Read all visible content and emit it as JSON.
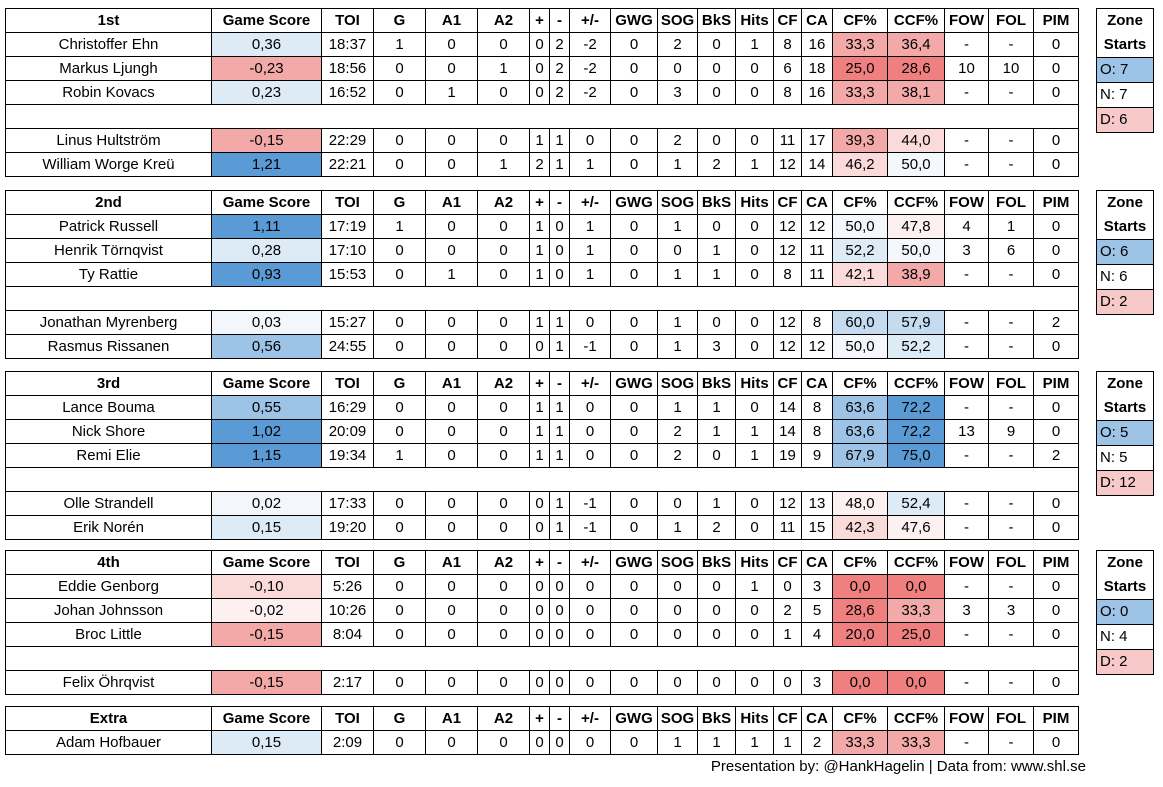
{
  "columns": [
    "Game Score",
    "TOI",
    "G",
    "A1",
    "A2",
    "+",
    "-",
    "+/-",
    "GWG",
    "SOG",
    "BkS",
    "Hits",
    "CF",
    "CA",
    "CF%",
    "CCF%",
    "FOW",
    "FOL",
    "PIM"
  ],
  "blocks": [
    {
      "name": "1st",
      "fwd": [
        {
          "player": "Christoffer Ehn",
          "gs": "0,36",
          "toi": "18:37",
          "g": "1",
          "a1": "0",
          "a2": "0",
          "plus": "0",
          "minus": "2",
          "pm": "-2",
          "gwg": "0",
          "sog": "2",
          "bks": "0",
          "hits": "1",
          "cf": "8",
          "ca": "16",
          "cfp": "33,3",
          "ccfp": "36,4",
          "fow": "-",
          "fol": "-",
          "pim": "0"
        },
        {
          "player": "Markus Ljungh",
          "gs": "-0,23",
          "toi": "18:56",
          "g": "0",
          "a1": "0",
          "a2": "1",
          "plus": "0",
          "minus": "2",
          "pm": "-2",
          "gwg": "0",
          "sog": "0",
          "bks": "0",
          "hits": "0",
          "cf": "6",
          "ca": "18",
          "cfp": "25,0",
          "ccfp": "28,6",
          "fow": "10",
          "fol": "10",
          "pim": "0"
        },
        {
          "player": "Robin Kovacs",
          "gs": "0,23",
          "toi": "16:52",
          "g": "0",
          "a1": "1",
          "a2": "0",
          "plus": "0",
          "minus": "2",
          "pm": "-2",
          "gwg": "0",
          "sog": "3",
          "bks": "0",
          "hits": "0",
          "cf": "8",
          "ca": "16",
          "cfp": "33,3",
          "ccfp": "38,1",
          "fow": "-",
          "fol": "-",
          "pim": "0"
        }
      ],
      "def": [
        {
          "player": "Linus Hultström",
          "gs": "-0,15",
          "toi": "22:29",
          "g": "0",
          "a1": "0",
          "a2": "0",
          "plus": "1",
          "minus": "1",
          "pm": "0",
          "gwg": "0",
          "sog": "2",
          "bks": "0",
          "hits": "0",
          "cf": "11",
          "ca": "17",
          "cfp": "39,3",
          "ccfp": "44,0",
          "fow": "-",
          "fol": "-",
          "pim": "0"
        },
        {
          "player": "William Worge Kreü",
          "gs": "1,21",
          "toi": "22:21",
          "g": "0",
          "a1": "0",
          "a2": "1",
          "plus": "2",
          "minus": "1",
          "pm": "1",
          "gwg": "0",
          "sog": "1",
          "bks": "2",
          "hits": "1",
          "cf": "12",
          "ca": "14",
          "cfp": "46,2",
          "ccfp": "50,0",
          "fow": "-",
          "fol": "-",
          "pim": "0"
        }
      ],
      "zone": {
        "title1": "Zone",
        "title2": "Starts",
        "o": "O: 7",
        "n": "N: 7",
        "d": "D: 6"
      }
    },
    {
      "name": "2nd",
      "fwd": [
        {
          "player": "Patrick Russell",
          "gs": "1,11",
          "toi": "17:19",
          "g": "1",
          "a1": "0",
          "a2": "0",
          "plus": "1",
          "minus": "0",
          "pm": "1",
          "gwg": "0",
          "sog": "1",
          "bks": "0",
          "hits": "0",
          "cf": "12",
          "ca": "12",
          "cfp": "50,0",
          "ccfp": "47,8",
          "fow": "4",
          "fol": "1",
          "pim": "0"
        },
        {
          "player": "Henrik Törnqvist",
          "gs": "0,28",
          "toi": "17:10",
          "g": "0",
          "a1": "0",
          "a2": "0",
          "plus": "1",
          "minus": "0",
          "pm": "1",
          "gwg": "0",
          "sog": "0",
          "bks": "1",
          "hits": "0",
          "cf": "12",
          "ca": "11",
          "cfp": "52,2",
          "ccfp": "50,0",
          "fow": "3",
          "fol": "6",
          "pim": "0"
        },
        {
          "player": "Ty Rattie",
          "gs": "0,93",
          "toi": "15:53",
          "g": "0",
          "a1": "1",
          "a2": "0",
          "plus": "1",
          "minus": "0",
          "pm": "1",
          "gwg": "0",
          "sog": "1",
          "bks": "1",
          "hits": "0",
          "cf": "8",
          "ca": "11",
          "cfp": "42,1",
          "ccfp": "38,9",
          "fow": "-",
          "fol": "-",
          "pim": "0"
        }
      ],
      "def": [
        {
          "player": "Jonathan Myrenberg",
          "gs": "0,03",
          "toi": "15:27",
          "g": "0",
          "a1": "0",
          "a2": "0",
          "plus": "1",
          "minus": "1",
          "pm": "0",
          "gwg": "0",
          "sog": "1",
          "bks": "0",
          "hits": "0",
          "cf": "12",
          "ca": "8",
          "cfp": "60,0",
          "ccfp": "57,9",
          "fow": "-",
          "fol": "-",
          "pim": "2"
        },
        {
          "player": "Rasmus Rissanen",
          "gs": "0,56",
          "toi": "24:55",
          "g": "0",
          "a1": "0",
          "a2": "0",
          "plus": "0",
          "minus": "1",
          "pm": "-1",
          "gwg": "0",
          "sog": "1",
          "bks": "3",
          "hits": "0",
          "cf": "12",
          "ca": "12",
          "cfp": "50,0",
          "ccfp": "52,2",
          "fow": "-",
          "fol": "-",
          "pim": "0"
        }
      ],
      "zone": {
        "title1": "Zone",
        "title2": "Starts",
        "o": "O: 6",
        "n": "N: 6",
        "d": "D: 2"
      }
    },
    {
      "name": "3rd",
      "fwd": [
        {
          "player": "Lance Bouma",
          "gs": "0,55",
          "toi": "16:29",
          "g": "0",
          "a1": "0",
          "a2": "0",
          "plus": "1",
          "minus": "1",
          "pm": "0",
          "gwg": "0",
          "sog": "1",
          "bks": "1",
          "hits": "0",
          "cf": "14",
          "ca": "8",
          "cfp": "63,6",
          "ccfp": "72,2",
          "fow": "-",
          "fol": "-",
          "pim": "0"
        },
        {
          "player": "Nick Shore",
          "gs": "1,02",
          "toi": "20:09",
          "g": "0",
          "a1": "0",
          "a2": "0",
          "plus": "1",
          "minus": "1",
          "pm": "0",
          "gwg": "0",
          "sog": "2",
          "bks": "1",
          "hits": "1",
          "cf": "14",
          "ca": "8",
          "cfp": "63,6",
          "ccfp": "72,2",
          "fow": "13",
          "fol": "9",
          "pim": "0"
        },
        {
          "player": "Remi Elie",
          "gs": "1,15",
          "toi": "19:34",
          "g": "1",
          "a1": "0",
          "a2": "0",
          "plus": "1",
          "minus": "1",
          "pm": "0",
          "gwg": "0",
          "sog": "2",
          "bks": "0",
          "hits": "1",
          "cf": "19",
          "ca": "9",
          "cfp": "67,9",
          "ccfp": "75,0",
          "fow": "-",
          "fol": "-",
          "pim": "2"
        }
      ],
      "def": [
        {
          "player": "Olle Strandell",
          "gs": "0,02",
          "toi": "17:33",
          "g": "0",
          "a1": "0",
          "a2": "0",
          "plus": "0",
          "minus": "1",
          "pm": "-1",
          "gwg": "0",
          "sog": "0",
          "bks": "1",
          "hits": "0",
          "cf": "12",
          "ca": "13",
          "cfp": "48,0",
          "ccfp": "52,4",
          "fow": "-",
          "fol": "-",
          "pim": "0"
        },
        {
          "player": "Erik Norén",
          "gs": "0,15",
          "toi": "19:20",
          "g": "0",
          "a1": "0",
          "a2": "0",
          "plus": "0",
          "minus": "1",
          "pm": "-1",
          "gwg": "0",
          "sog": "1",
          "bks": "2",
          "hits": "0",
          "cf": "11",
          "ca": "15",
          "cfp": "42,3",
          "ccfp": "47,6",
          "fow": "-",
          "fol": "-",
          "pim": "0"
        }
      ],
      "zone": {
        "title1": "Zone",
        "title2": "Starts",
        "o": "O: 5",
        "n": "N: 5",
        "d": "D: 12"
      }
    },
    {
      "name": "4th",
      "fwd": [
        {
          "player": "Eddie Genborg",
          "gs": "-0,10",
          "toi": "5:26",
          "g": "0",
          "a1": "0",
          "a2": "0",
          "plus": "0",
          "minus": "0",
          "pm": "0",
          "gwg": "0",
          "sog": "0",
          "bks": "0",
          "hits": "1",
          "cf": "0",
          "ca": "3",
          "cfp": "0,0",
          "ccfp": "0,0",
          "fow": "-",
          "fol": "-",
          "pim": "0"
        },
        {
          "player": "Johan Johnsson",
          "gs": "-0,02",
          "toi": "10:26",
          "g": "0",
          "a1": "0",
          "a2": "0",
          "plus": "0",
          "minus": "0",
          "pm": "0",
          "gwg": "0",
          "sog": "0",
          "bks": "0",
          "hits": "0",
          "cf": "2",
          "ca": "5",
          "cfp": "28,6",
          "ccfp": "33,3",
          "fow": "3",
          "fol": "3",
          "pim": "0"
        },
        {
          "player": "Broc Little",
          "gs": "-0,15",
          "toi": "8:04",
          "g": "0",
          "a1": "0",
          "a2": "0",
          "plus": "0",
          "minus": "0",
          "pm": "0",
          "gwg": "0",
          "sog": "0",
          "bks": "0",
          "hits": "0",
          "cf": "1",
          "ca": "4",
          "cfp": "20,0",
          "ccfp": "25,0",
          "fow": "-",
          "fol": "-",
          "pim": "0"
        }
      ],
      "def": [
        {
          "player": "Felix Öhrqvist",
          "gs": "-0,15",
          "toi": "2:17",
          "g": "0",
          "a1": "0",
          "a2": "0",
          "plus": "0",
          "minus": "0",
          "pm": "0",
          "gwg": "0",
          "sog": "0",
          "bks": "0",
          "hits": "0",
          "cf": "0",
          "ca": "3",
          "cfp": "0,0",
          "ccfp": "0,0",
          "fow": "-",
          "fol": "-",
          "pim": "0"
        }
      ],
      "zone": {
        "title1": "Zone",
        "title2": "Starts",
        "o": "O: 0",
        "n": "N: 4",
        "d": "D: 2"
      }
    },
    {
      "name": "Extra",
      "fwd": [
        {
          "player": "Adam Hofbauer",
          "gs": "0,15",
          "toi": "2:09",
          "g": "0",
          "a1": "0",
          "a2": "0",
          "plus": "0",
          "minus": "0",
          "pm": "0",
          "gwg": "0",
          "sog": "1",
          "bks": "1",
          "hits": "1",
          "cf": "1",
          "ca": "2",
          "cfp": "33,3",
          "ccfp": "33,3",
          "fow": "-",
          "fol": "-",
          "pim": "0"
        }
      ],
      "def": [],
      "zone": null
    }
  ],
  "footer": "Presentation by: @HankHagelin | Data from: www.shl.se",
  "colors": {
    "blue_strong": "#5b9bd5",
    "blue_medium": "#9dc3e6",
    "blue_light": "#ddebf7",
    "red_strong": "#f08080",
    "red_medium": "#f4a9a9",
    "red_light": "#fbdada",
    "zone_o": "#9dc3e6",
    "zone_d": "#f8c9c9"
  }
}
